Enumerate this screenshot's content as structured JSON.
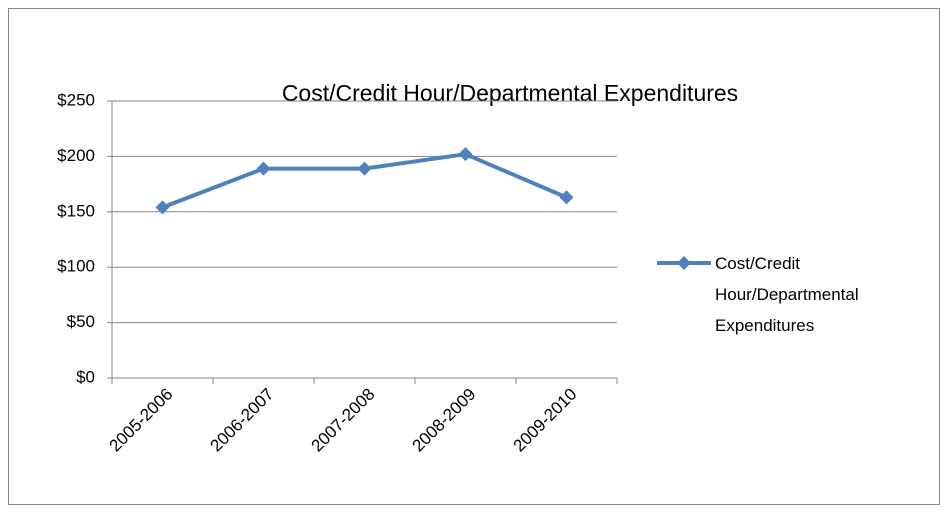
{
  "chart_data": {
    "type": "line",
    "title": "Cost/Credit Hour/Departmental Expenditures",
    "categories": [
      "2005-2006",
      "2006-2007",
      "2007-2008",
      "2008-2009",
      "2009-2010"
    ],
    "series": [
      {
        "name": "Cost/Credit Hour/Departmental Expenditures",
        "color": "#4f81bd",
        "values": [
          154,
          189,
          189,
          202,
          163
        ]
      }
    ],
    "ylim": [
      0,
      250
    ],
    "yticks": [
      {
        "value": 0,
        "label": "$0"
      },
      {
        "value": 50,
        "label": "$50"
      },
      {
        "value": 100,
        "label": "$100"
      },
      {
        "value": 150,
        "label": "$150"
      },
      {
        "value": 200,
        "label": "$200"
      },
      {
        "value": 250,
        "label": "$250"
      }
    ],
    "grid": true,
    "legend": "right"
  }
}
